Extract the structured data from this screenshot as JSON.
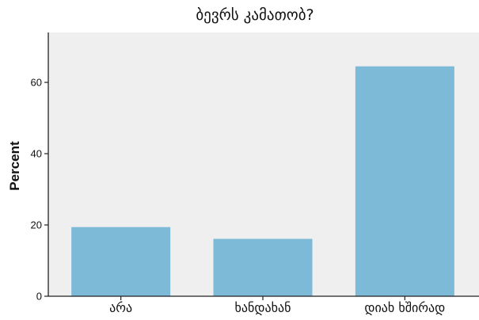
{
  "chart_data": {
    "type": "bar",
    "title": "ბევრს კამათობ?",
    "xlabel": "",
    "ylabel": "Percent",
    "categories": [
      "არა",
      "ხანდახან",
      "დიახ ხშირად"
    ],
    "values": [
      19.4,
      16.1,
      64.5
    ],
    "ylim": [
      0,
      74
    ],
    "yticks": [
      0,
      20,
      40,
      60
    ],
    "grid": false,
    "colors": {
      "bar": "#7cbad8",
      "plot_background": "#efefef",
      "axis": "#222222"
    }
  }
}
